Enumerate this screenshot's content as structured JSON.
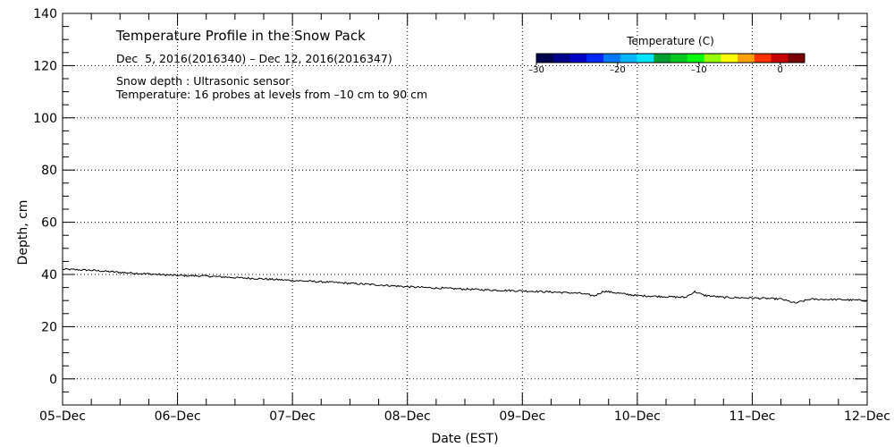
{
  "chart_data": {
    "type": "line",
    "title": "Temperature Profile in the Snow Pack",
    "subtitle": "Dec  5, 2016(2016340) – Dec 12, 2016(2016347)",
    "notes": [
      "Snow depth : Ultrasonic sensor",
      "Temperature: 16 probes at levels from –10 cm to 90 cm"
    ],
    "xlabel": "Date (EST)",
    "ylabel": "Depth, cm",
    "x_ticks": [
      "05–Dec",
      "06–Dec",
      "07–Dec",
      "08–Dec",
      "09–Dec",
      "10–Dec",
      "11–Dec",
      "12–Dec"
    ],
    "xlim": [
      "2016-12-05",
      "2016-12-12"
    ],
    "y_ticks": [
      "0",
      "20",
      "40",
      "60",
      "80",
      "100",
      "120",
      "140"
    ],
    "ylim": [
      -10,
      140
    ],
    "grid": true,
    "series": [
      {
        "values": [
          [
            "2016-12-05T00:00",
            42.0
          ],
          [
            "2016-12-05T06:00",
            41.6
          ],
          [
            "2016-12-05T12:00",
            40.8
          ],
          [
            "2016-12-05T18:00",
            40.2
          ],
          [
            "2016-12-06T00:00",
            39.6
          ],
          [
            "2016-12-06T06:00",
            39.4
          ],
          [
            "2016-12-06T12:00",
            38.8
          ],
          [
            "2016-12-06T18:00",
            38.3
          ],
          [
            "2016-12-07T00:00",
            37.7
          ],
          [
            "2016-12-07T06:00",
            37.2
          ],
          [
            "2016-12-07T12:00",
            36.6
          ],
          [
            "2016-12-07T18:00",
            36.0
          ],
          [
            "2016-12-08T00:00",
            35.3
          ],
          [
            "2016-12-08T06:00",
            34.8
          ],
          [
            "2016-12-08T12:00",
            34.4
          ],
          [
            "2016-12-08T18:00",
            34.0
          ],
          [
            "2016-12-09T00:00",
            33.7
          ],
          [
            "2016-12-09T06:00",
            33.3
          ],
          [
            "2016-12-09T12:00",
            32.8
          ],
          [
            "2016-12-09T15:00",
            31.8
          ],
          [
            "2016-12-09T17:00",
            33.6
          ],
          [
            "2016-12-09T21:00",
            32.6
          ],
          [
            "2016-12-10T00:00",
            31.9
          ],
          [
            "2016-12-10T06:00",
            31.5
          ],
          [
            "2016-12-10T10:00",
            31.2
          ],
          [
            "2016-12-10T12:00",
            33.4
          ],
          [
            "2016-12-10T14:00",
            32.0
          ],
          [
            "2016-12-10T18:00",
            31.2
          ],
          [
            "2016-12-11T00:00",
            31.0
          ],
          [
            "2016-12-11T06:00",
            30.6
          ],
          [
            "2016-12-11T09:00",
            29.0
          ],
          [
            "2016-12-11T12:00",
            30.5
          ],
          [
            "2016-12-11T18:00",
            30.4
          ],
          [
            "2016-12-12T00:00",
            30.0
          ]
        ]
      }
    ],
    "colorbar": {
      "title": "Temperature (C)",
      "range": [
        -30,
        3
      ],
      "tick_labels": [
        "–30",
        "–20",
        "–10",
        "0"
      ],
      "tick_values": [
        -30,
        -20,
        -10,
        0
      ],
      "colors": [
        "#000050",
        "#00008c",
        "#0000c8",
        "#0028ff",
        "#0078ff",
        "#00b4ff",
        "#00e6ff",
        "#00a030",
        "#00c820",
        "#00ff00",
        "#96ff00",
        "#ffff00",
        "#ffa000",
        "#ff3200",
        "#c80000",
        "#780000"
      ]
    },
    "line_color": "#000000"
  }
}
